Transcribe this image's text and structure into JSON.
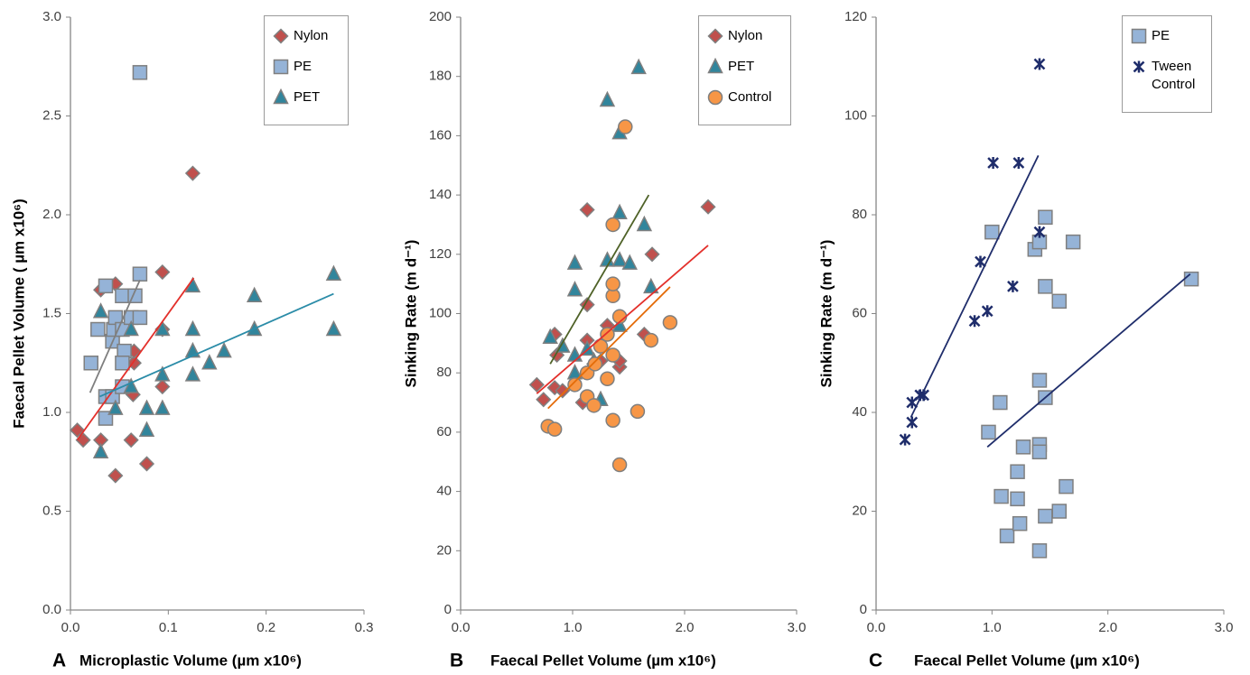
{
  "chart_data": [
    {
      "type": "scatter",
      "panel_label": "A",
      "xlabel": "Microplastic Volume (µm x10⁶)",
      "ylabel": "Faecal Pellet Volume ( µm x10⁶)",
      "xlim": [
        0,
        0.3
      ],
      "xticks": [
        {
          "value": 0,
          "label": "0.0"
        },
        0.1,
        0.2,
        0.3
      ],
      "ylim": [
        0,
        3
      ],
      "yticks": [
        {
          "value": 0,
          "label": "0.0"
        },
        0.5,
        {
          "value": 1,
          "label": "1.0"
        },
        1.5,
        {
          "value": 2,
          "label": "2.0"
        },
        2.5,
        {
          "value": 3,
          "label": "3.0"
        }
      ],
      "grid": false,
      "legend": "upper right",
      "series": [
        {
          "name": "Nylon",
          "marker": "diamond",
          "color": "#c0504d",
          "trend_color": "#e3302b",
          "x": [
            0.007,
            0.013,
            0.031,
            0.031,
            0.046,
            0.046,
            0.062,
            0.064,
            0.065,
            0.065,
            0.078,
            0.094,
            0.094,
            0.094,
            0.125
          ],
          "y": [
            0.91,
            0.86,
            0.86,
            1.62,
            0.68,
            1.65,
            0.86,
            1.09,
            1.25,
            1.31,
            0.74,
            1.71,
            1.13,
            1.42,
            2.21
          ],
          "trend_x": [
            0.007,
            0.126
          ],
          "trend_y": [
            0.86,
            1.68
          ]
        },
        {
          "name": "PE",
          "marker": "square",
          "color": "#95b3d7",
          "trend_color": "#7f7f7f",
          "x": [
            0.071,
            0.021,
            0.028,
            0.036,
            0.036,
            0.036,
            0.043,
            0.043,
            0.044,
            0.046,
            0.053,
            0.053,
            0.055,
            0.053,
            0.053,
            0.062,
            0.066,
            0.071,
            0.071
          ],
          "y": [
            2.72,
            1.25,
            1.42,
            1.64,
            1.08,
            0.97,
            1.08,
            1.36,
            1.42,
            1.48,
            1.59,
            1.42,
            1.31,
            1.25,
            1.13,
            1.48,
            1.59,
            1.48,
            1.7
          ],
          "trend_x": [
            0.02,
            0.071
          ],
          "trend_y": [
            1.1,
            1.67
          ]
        },
        {
          "name": "PET",
          "marker": "triangle",
          "color": "#31859c",
          "trend_color": "#2b8ca8",
          "x": [
            0.031,
            0.031,
            0.046,
            0.062,
            0.062,
            0.078,
            0.078,
            0.094,
            0.094,
            0.094,
            0.125,
            0.125,
            0.125,
            0.125,
            0.142,
            0.157,
            0.188,
            0.188,
            0.269,
            0.269
          ],
          "y": [
            0.8,
            1.51,
            1.02,
            1.42,
            1.13,
            1.02,
            0.91,
            1.19,
            1.02,
            1.42,
            1.64,
            1.42,
            1.31,
            1.19,
            1.25,
            1.31,
            1.42,
            1.59,
            1.7,
            1.42
          ],
          "trend_x": [
            0.03,
            0.269
          ],
          "trend_y": [
            1.08,
            1.6
          ]
        }
      ]
    },
    {
      "type": "scatter",
      "panel_label": "B",
      "xlabel": "Faecal Pellet Volume (µm x10⁶)",
      "ylabel": "Sinking Rate (m d⁻¹)",
      "xlim": [
        0,
        3
      ],
      "xticks": [
        {
          "value": 0,
          "label": "0.0"
        },
        {
          "value": 1,
          "label": "1.0"
        },
        {
          "value": 2,
          "label": "2.0"
        },
        {
          "value": 3,
          "label": "3.0"
        }
      ],
      "ylim": [
        0,
        200
      ],
      "yticks": [
        0,
        20,
        40,
        60,
        80,
        100,
        120,
        140,
        160,
        180,
        200
      ],
      "grid": false,
      "legend": "upper right",
      "series": [
        {
          "name": "Nylon",
          "marker": "diamond",
          "color": "#c0504d",
          "trend_color": "#e3302b",
          "x": [
            0.68,
            0.74,
            0.84,
            0.84,
            0.86,
            0.91,
            1.09,
            1.13,
            1.13,
            1.13,
            1.19,
            1.25,
            1.31,
            1.42,
            1.42,
            1.64,
            1.71,
            2.21
          ],
          "y": [
            76,
            71,
            75,
            93,
            86,
            74,
            70,
            91,
            135,
            103,
            83,
            84,
            96,
            82,
            84,
            93,
            120,
            136
          ],
          "trend_x": [
            0.68,
            2.21
          ],
          "trend_y": [
            73,
            123
          ]
        },
        {
          "name": "PET",
          "marker": "triangle",
          "color": "#31859c",
          "trend_color": "#4f6228",
          "x": [
            0.8,
            0.91,
            1.02,
            1.02,
            1.02,
            1.02,
            1.19,
            1.25,
            1.31,
            1.31,
            1.42,
            1.42,
            1.42,
            1.42,
            1.51,
            1.59,
            1.64,
            1.7,
            1.13
          ],
          "y": [
            92,
            89,
            80,
            86,
            108,
            117,
            84,
            71,
            118,
            172,
            118,
            134,
            161,
            96,
            117,
            183,
            130,
            109,
            88
          ],
          "trend_x": [
            0.8,
            1.68
          ],
          "trend_y": [
            83,
            140
          ]
        },
        {
          "name": "Control",
          "marker": "circle",
          "color": "#f79646",
          "trend_color": "#e46c0a",
          "x": [
            0.78,
            0.84,
            1.02,
            1.13,
            1.13,
            1.19,
            1.25,
            1.31,
            1.31,
            1.36,
            1.36,
            1.36,
            1.36,
            1.36,
            1.42,
            1.42,
            1.47,
            1.58,
            1.7,
            1.87,
            1.2
          ],
          "y": [
            62,
            61,
            76,
            80,
            72,
            69,
            89,
            93,
            78,
            64,
            86,
            106,
            110,
            130,
            49,
            99,
            163,
            67,
            91,
            97,
            83
          ],
          "trend_x": [
            0.78,
            1.87
          ],
          "trend_y": [
            68,
            109
          ]
        }
      ]
    },
    {
      "type": "scatter",
      "panel_label": "C",
      "xlabel": "Faecal Pellet Volume (µm x10⁶)",
      "ylabel": "Sinking Rate (m d⁻¹)",
      "xlim": [
        0,
        3
      ],
      "xticks": [
        {
          "value": 0,
          "label": "0.0"
        },
        {
          "value": 1,
          "label": "1.0"
        },
        {
          "value": 2,
          "label": "2.0"
        },
        {
          "value": 3,
          "label": "3.0"
        }
      ],
      "ylim": [
        0,
        120
      ],
      "yticks": [
        0,
        20,
        40,
        60,
        80,
        100,
        120
      ],
      "grid": false,
      "legend": "upper right",
      "series": [
        {
          "name": "PE",
          "marker": "square",
          "color": "#95b3d7",
          "trend_color": "#1f2d6b",
          "x": [
            0.97,
            1.0,
            1.07,
            1.08,
            1.13,
            1.22,
            1.22,
            1.24,
            1.27,
            1.37,
            1.41,
            1.41,
            1.41,
            1.41,
            1.41,
            1.46,
            1.46,
            1.46,
            1.46,
            1.58,
            1.58,
            1.64,
            1.7,
            2.72
          ],
          "y": [
            36,
            76.5,
            42,
            23,
            15,
            28,
            22.5,
            17.5,
            33,
            73,
            74.5,
            46.5,
            33.5,
            32,
            12,
            79.5,
            65.5,
            43,
            19,
            62.5,
            20,
            25,
            74.5,
            67
          ],
          "trend_x": [
            0.96,
            2.71
          ],
          "trend_y": [
            33,
            68
          ]
        },
        {
          "name": "Tween Control",
          "marker": "star",
          "color": "#1f2d6b",
          "trend_color": "#1f2d6b",
          "x": [
            0.25,
            0.31,
            0.31,
            0.38,
            0.41,
            0.85,
            0.9,
            0.96,
            1.01,
            1.18,
            1.23,
            1.41,
            1.41
          ],
          "y": [
            34.5,
            42,
            38,
            43.5,
            43.5,
            58.5,
            70.5,
            60.5,
            90.5,
            65.5,
            90.5,
            76.5,
            110.5
          ],
          "trend_x": [
            0.3,
            1.4
          ],
          "trend_y": [
            39,
            92
          ]
        }
      ]
    }
  ]
}
